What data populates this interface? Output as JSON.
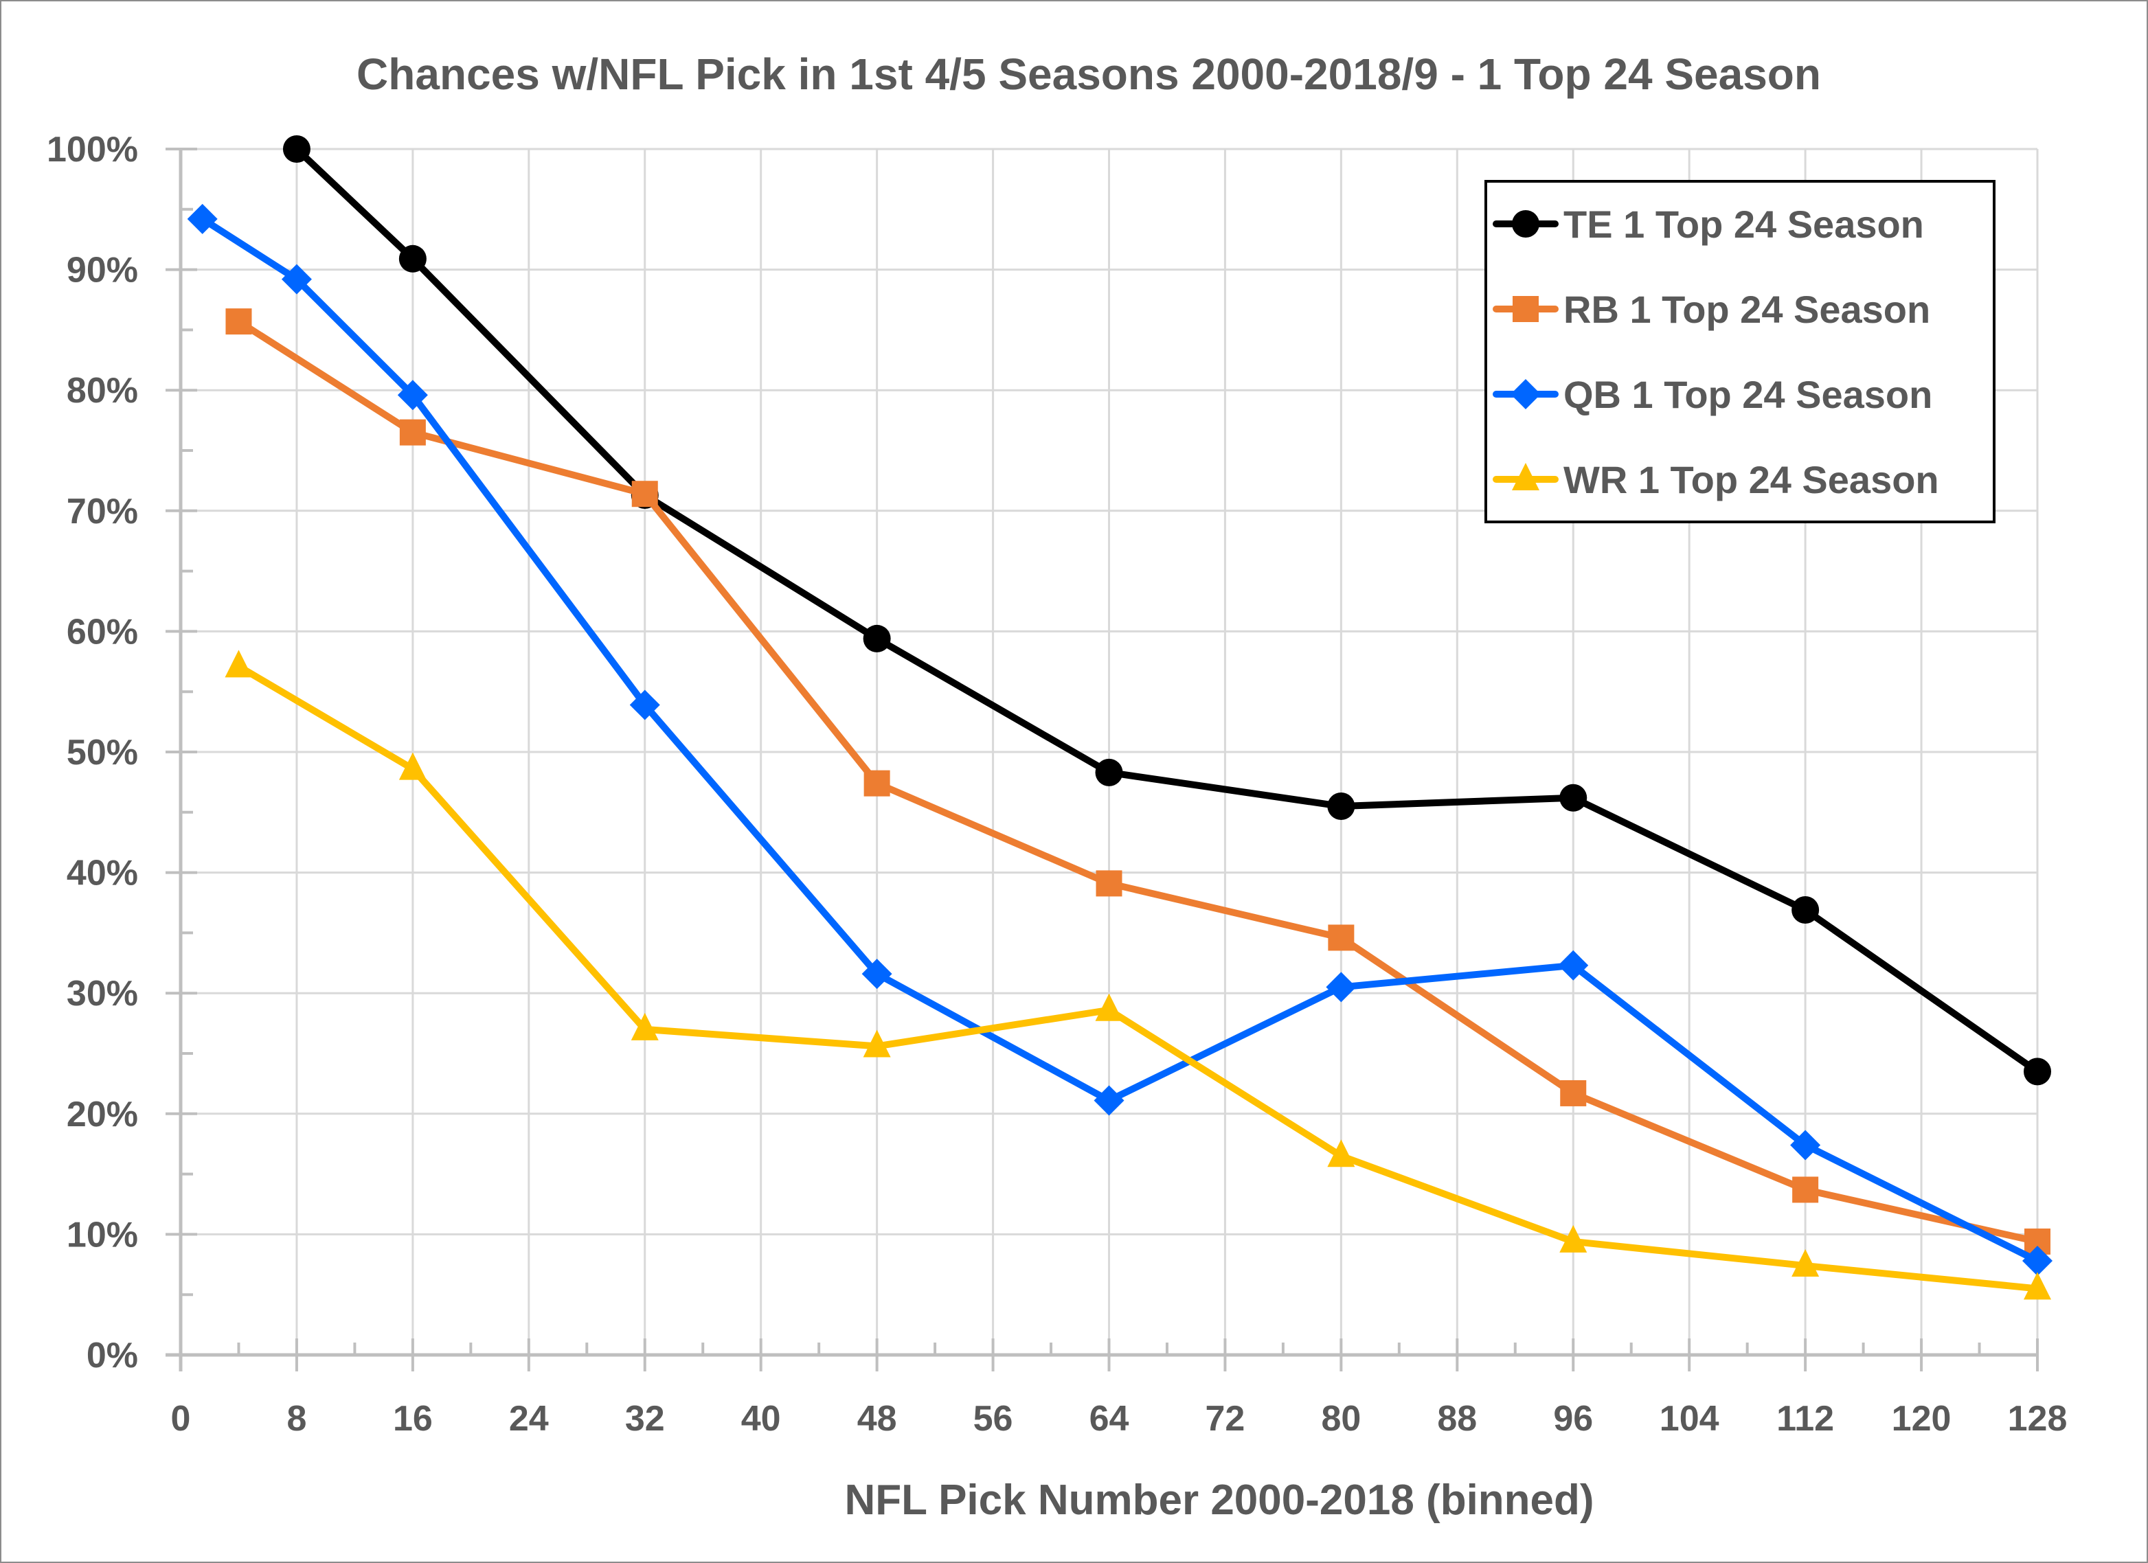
{
  "chart_data": {
    "type": "line",
    "title": "Chances w/NFL Pick in 1st 4/5 Seasons 2000-2018/9 - 1 Top 24 Season",
    "xlabel": "NFL Pick Number 2000-2018 (binned)",
    "ylabel": "",
    "xlim": [
      0,
      128
    ],
    "ylim": [
      0,
      100
    ],
    "x_ticks": [
      0,
      8,
      16,
      24,
      32,
      40,
      48,
      56,
      64,
      72,
      80,
      88,
      96,
      104,
      112,
      120,
      128
    ],
    "y_ticks": [
      0,
      10,
      20,
      30,
      40,
      50,
      60,
      70,
      80,
      90,
      100
    ],
    "y_tick_format": "percent",
    "grid": true,
    "legend_position": "top-right",
    "series": [
      {
        "name": "TE 1 Top 24 Season",
        "color": "#000000",
        "marker": "circle",
        "x": [
          8,
          16,
          32,
          48,
          64,
          80,
          96,
          112,
          128
        ],
        "values": [
          100,
          90.9,
          71.3,
          59.4,
          48.3,
          45.5,
          46.2,
          36.9,
          23.5
        ]
      },
      {
        "name": "RB 1 Top 24 Season",
        "color": "#ed7d31",
        "marker": "square",
        "x": [
          4,
          16,
          32,
          48,
          64,
          80,
          96,
          112,
          128
        ],
        "values": [
          85.7,
          76.5,
          71.4,
          47.4,
          39.1,
          34.6,
          21.7,
          13.7,
          9.4
        ]
      },
      {
        "name": "QB 1 Top 24 Season",
        "color": "#0066ff",
        "marker": "diamond",
        "x": [
          1.5,
          8,
          16,
          32,
          48,
          64,
          80,
          96,
          112,
          128
        ],
        "values": [
          94.2,
          89.2,
          79.6,
          53.9,
          31.6,
          21.1,
          30.5,
          32.3,
          17.4,
          7.8
        ]
      },
      {
        "name": "WR 1 Top 24 Season",
        "color": "#ffc000",
        "marker": "triangle",
        "x": [
          4,
          16,
          32,
          48,
          64,
          80,
          96,
          112,
          128
        ],
        "values": [
          57.1,
          48.6,
          27.0,
          25.6,
          28.6,
          16.5,
          9.4,
          7.4,
          5.5
        ]
      }
    ]
  }
}
